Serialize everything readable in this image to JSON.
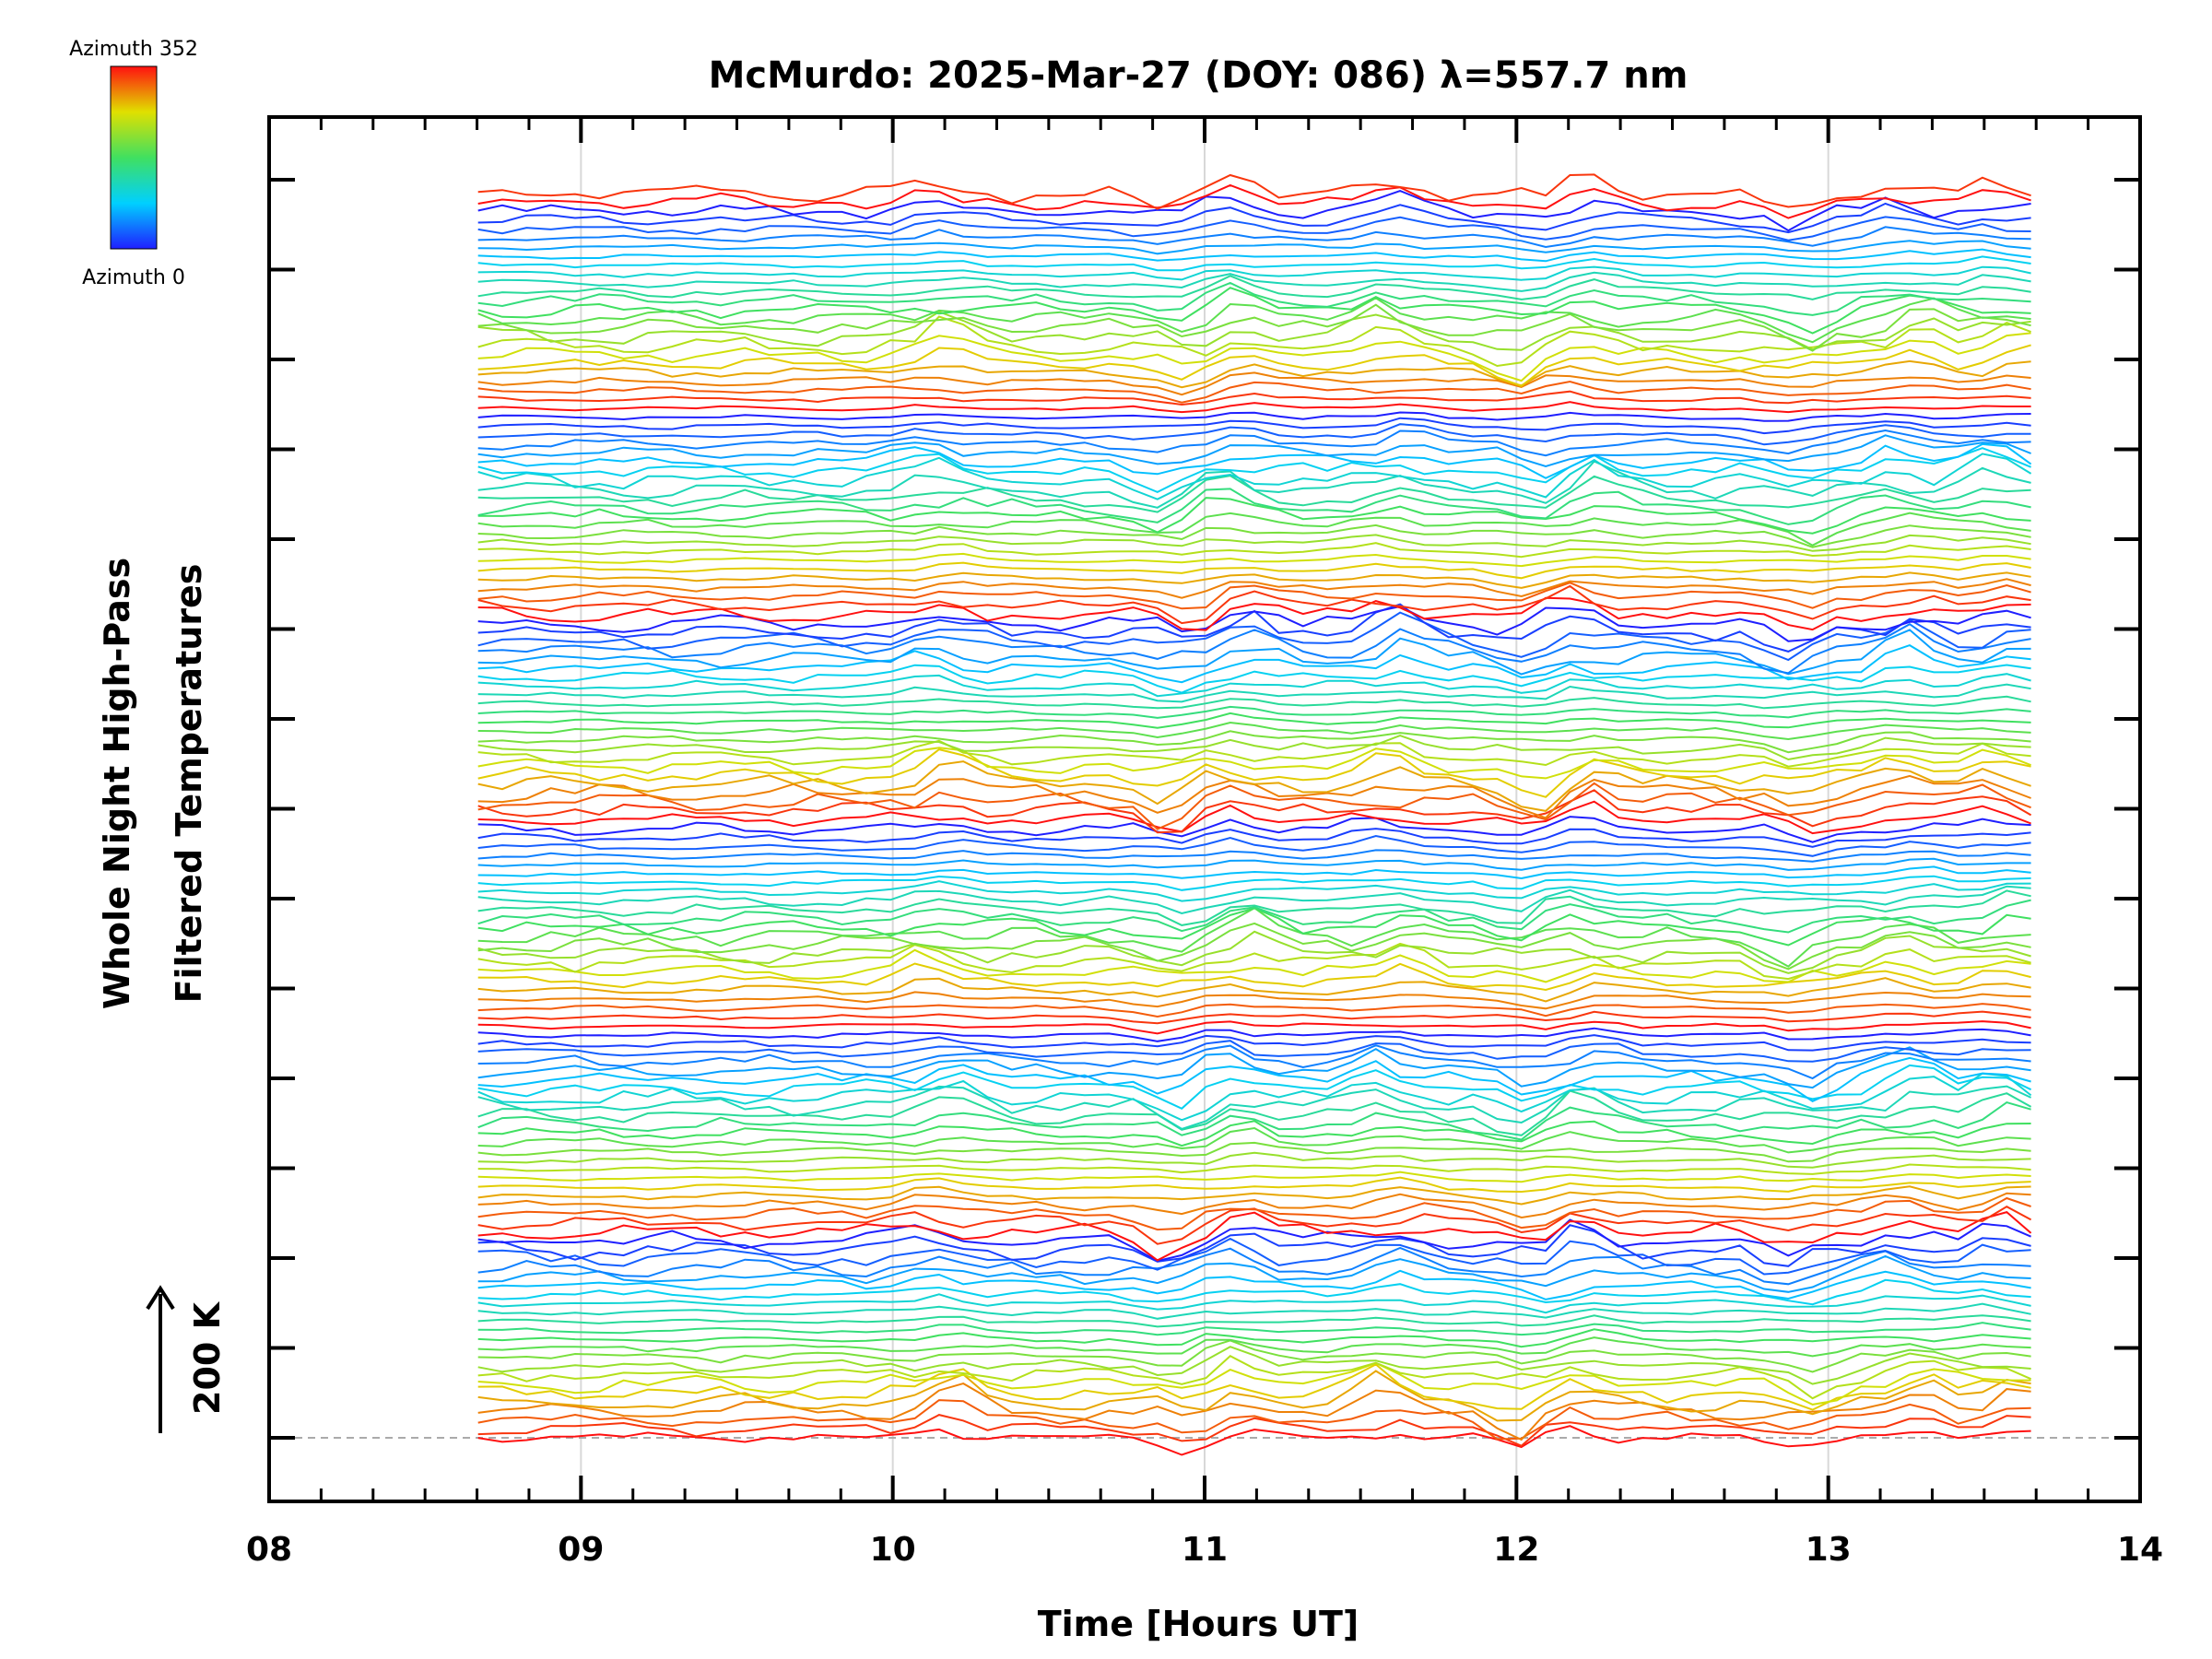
{
  "chart_data": {
    "type": "line",
    "title": "McMurdo: 2025-Mar-27 (DOY: 086) λ=557.7 nm",
    "xlabel": "Time [Hours UT]",
    "ylabel_line1": "Whole Night High-Pass",
    "ylabel_line2": "Filtered Temperatures",
    "scale_label": "200 K",
    "xlim": [
      8,
      14
    ],
    "x_ticks": [
      "08",
      "09",
      "10",
      "11",
      "12",
      "13",
      "14"
    ],
    "x_tick_values": [
      8,
      9,
      10,
      11,
      12,
      13,
      14
    ],
    "y_major_tick_count": 15,
    "data_time_range": [
      8.67,
      13.65
    ],
    "grid": "vertical lines at each hour",
    "trace_count": 140,
    "traces_per_group": 23,
    "colorbar": {
      "top_label": "Azimuth  352",
      "bottom_label": "Azimuth  0",
      "colormap": "rainbow (blue → cyan → green → yellow → red)",
      "placement": "top-left"
    },
    "features": [
      {
        "x": 10.15,
        "description": "positive peak"
      },
      {
        "x": 10.9,
        "description": "negative dip"
      },
      {
        "x": 11.1,
        "description": "positive peak"
      },
      {
        "x": 11.6,
        "description": "positive peak"
      },
      {
        "x": 12.05,
        "description": "negative dip"
      },
      {
        "x": 12.2,
        "description": "positive peak"
      },
      {
        "x": 12.9,
        "description": "negative dip"
      },
      {
        "x": 13.25,
        "description": "positive peak"
      },
      {
        "x": 13.55,
        "description": "positive peak"
      }
    ]
  }
}
